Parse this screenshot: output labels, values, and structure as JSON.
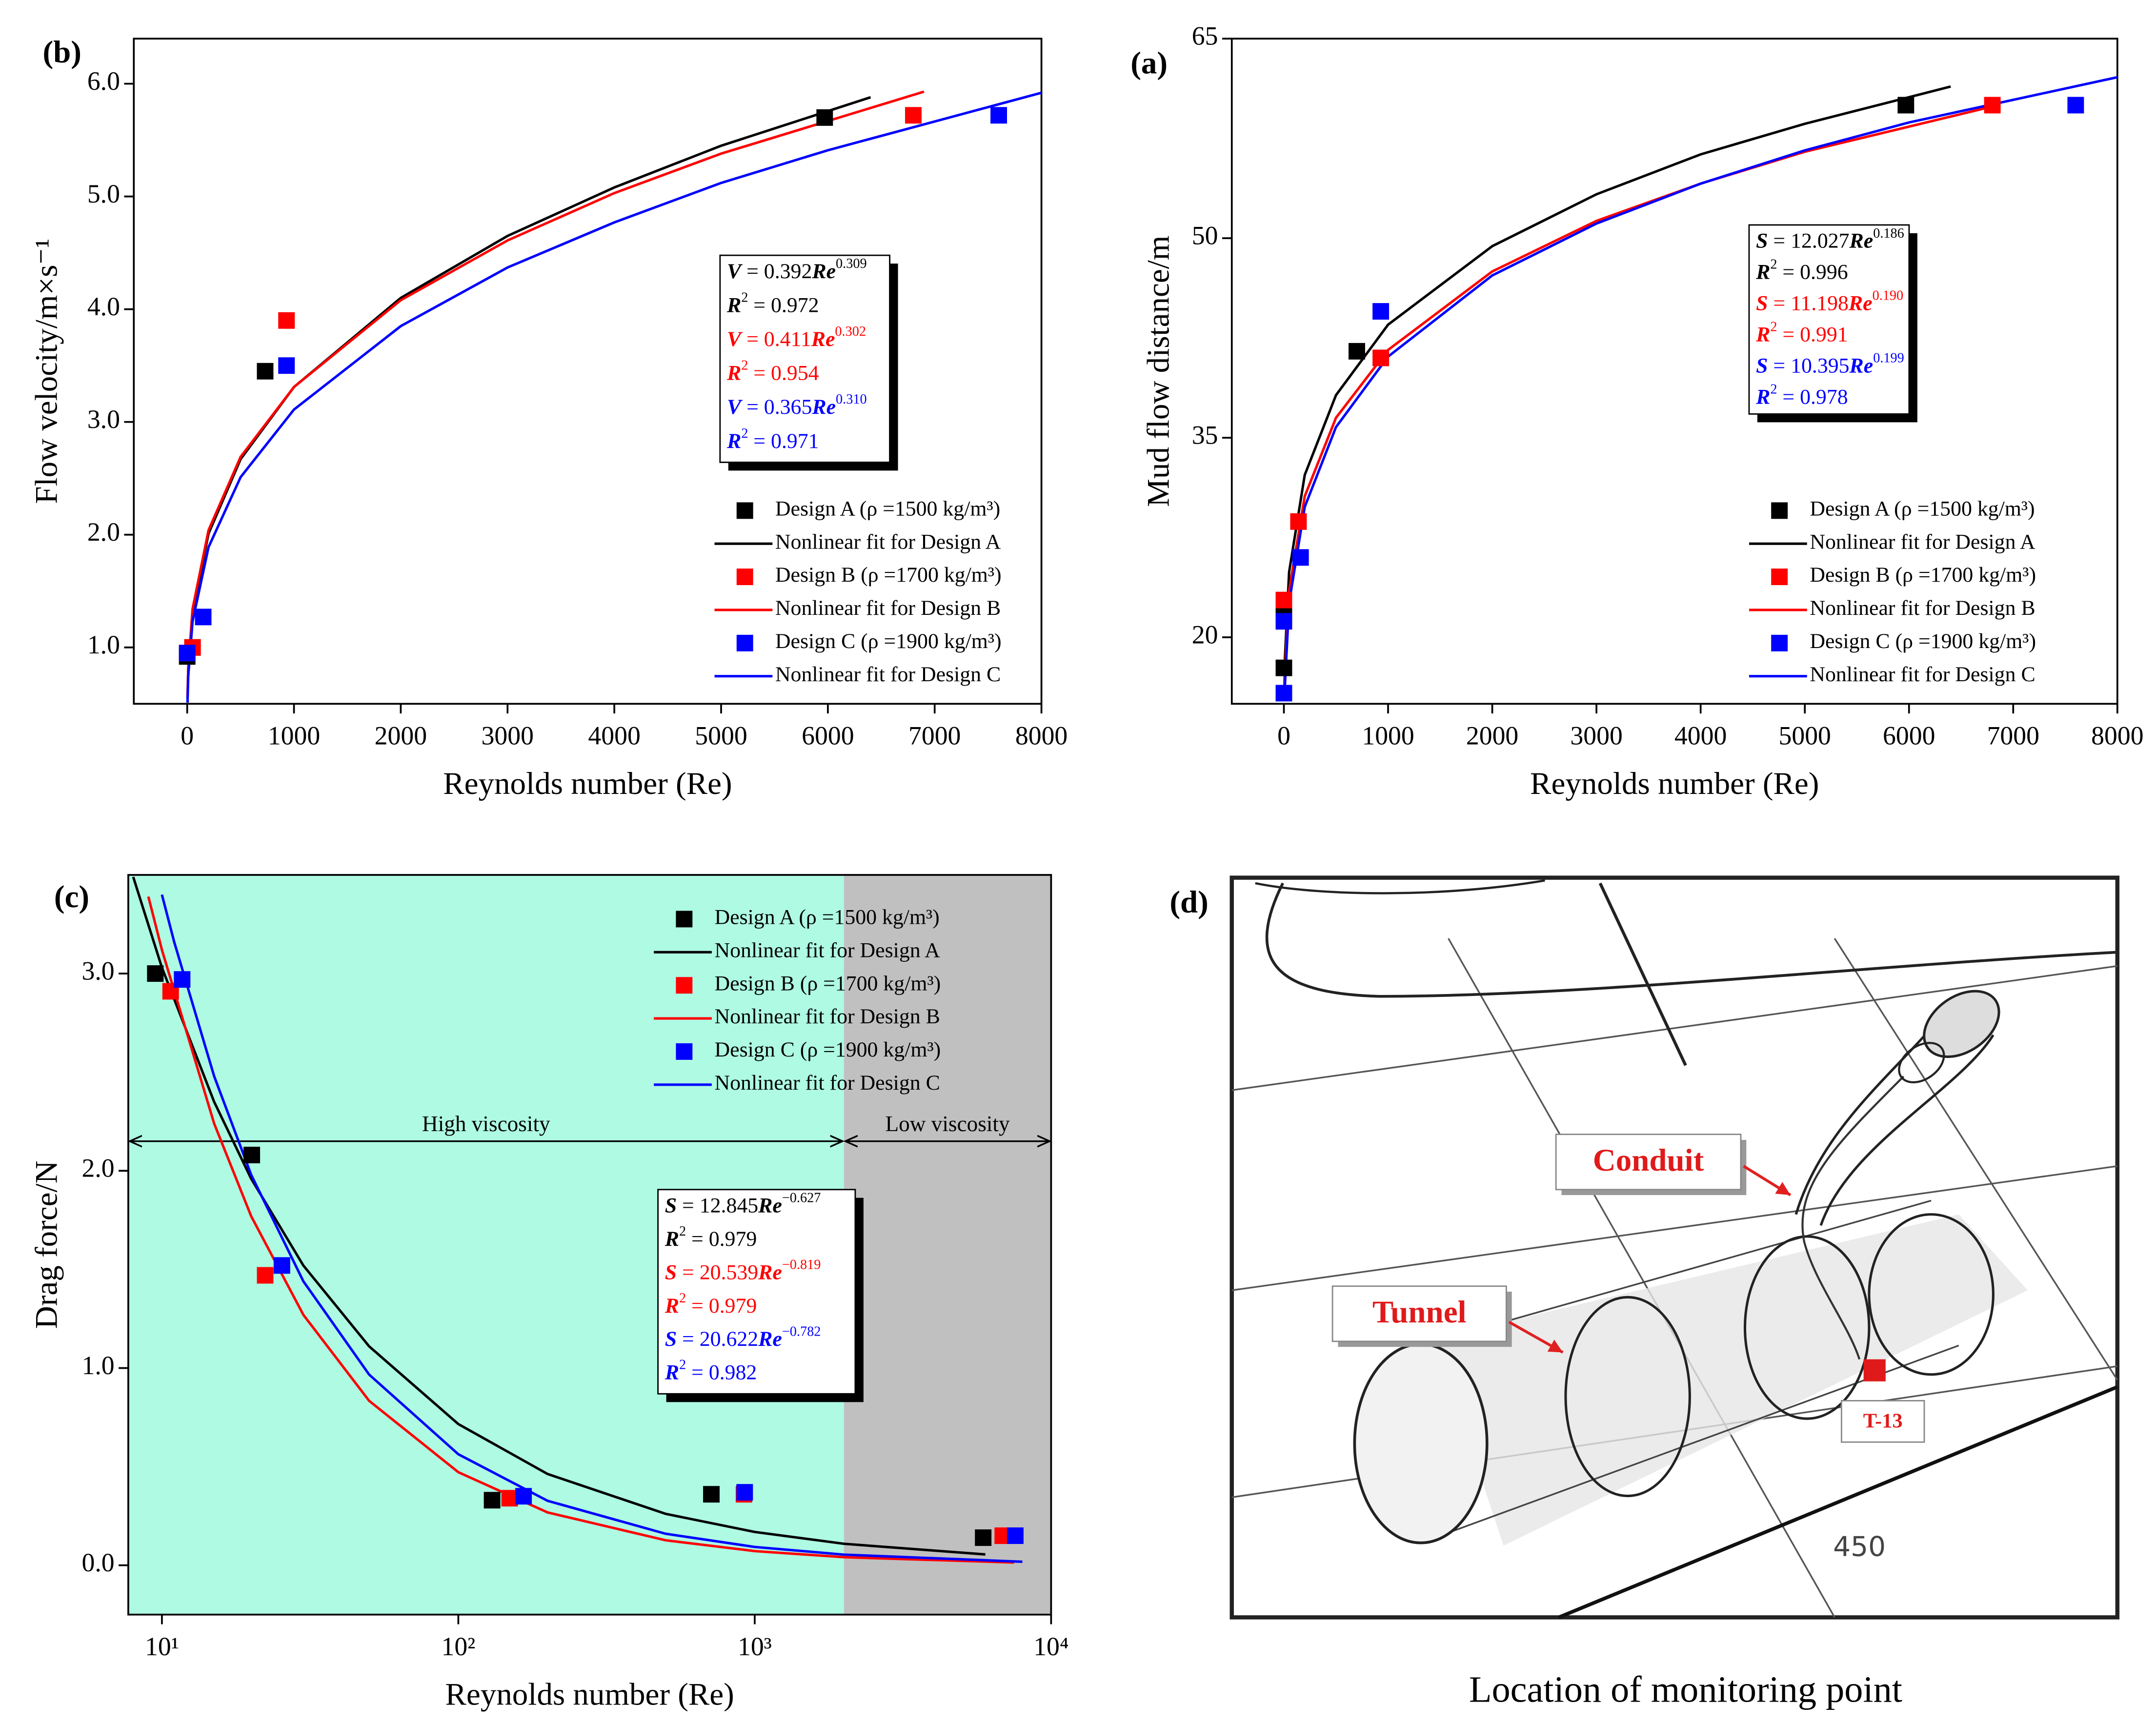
{
  "chart_data": [
    {
      "type": "scatter",
      "label": "(b)",
      "xlabel": "Reynolds number (Re)",
      "ylabel": "Flow velocity/m×s⁻¹",
      "xlim": [
        -500,
        8000
      ],
      "xticks": [
        0,
        1000,
        2000,
        3000,
        4000,
        5000,
        6000,
        7000,
        8000
      ],
      "ylim": [
        0.5,
        6.4
      ],
      "yticks": [
        {
          "value": 1,
          "label": "1.0"
        },
        {
          "value": 2,
          "label": "2.0"
        },
        {
          "value": 3,
          "label": "3.0"
        },
        {
          "value": 4,
          "label": "4.0"
        },
        {
          "value": 5,
          "label": "5.0"
        },
        {
          "value": 6,
          "label": "6.0"
        }
      ],
      "legend": "lower right",
      "series": [
        {
          "name": "Design A (ρ =1500 kg/m³)",
          "color": "#000000",
          "style": "marker",
          "x": [
            0,
            50,
            730,
            5970
          ],
          "values": [
            0.92,
            1.0,
            3.45,
            5.7
          ]
        },
        {
          "name": "Nonlinear fit for Design A",
          "color": "#000000",
          "style": "line",
          "x": [
            3,
            10,
            50,
            200,
            500,
            1000,
            2000,
            3000,
            4000,
            5000,
            6400
          ],
          "values": [
            0.55,
            0.8,
            1.31,
            2.01,
            2.67,
            3.31,
            4.1,
            4.65,
            5.08,
            5.45,
            5.88
          ]
        },
        {
          "name": "Design B (ρ =1700 kg/m³)",
          "color": "#ff0000",
          "style": "marker",
          "x": [
            0,
            50,
            930,
            6800
          ],
          "values": [
            0.95,
            1.0,
            3.9,
            5.72
          ]
        },
        {
          "name": "Nonlinear fit for Design B",
          "color": "#ff0000",
          "style": "line",
          "x": [
            3,
            10,
            50,
            200,
            500,
            1000,
            2000,
            3000,
            4000,
            5000,
            6900
          ],
          "values": [
            0.57,
            0.82,
            1.34,
            2.04,
            2.69,
            3.31,
            4.08,
            4.61,
            5.03,
            5.38,
            5.93
          ]
        },
        {
          "name": "Design C (ρ =1900 kg/m³)",
          "color": "#0000ff",
          "style": "marker",
          "x": [
            0,
            150,
            930,
            7600
          ],
          "values": [
            0.95,
            1.27,
            3.5,
            5.72
          ]
        },
        {
          "name": "Nonlinear fit for Design C",
          "color": "#0000ff",
          "style": "line",
          "x": [
            3,
            10,
            50,
            200,
            500,
            1000,
            2000,
            3000,
            4000,
            5000,
            6000,
            8000
          ],
          "values": [
            0.51,
            0.75,
            1.23,
            1.89,
            2.51,
            3.11,
            3.85,
            4.37,
            4.77,
            5.12,
            5.41,
            5.92
          ]
        }
      ],
      "annotation": {
        "lines": [
          {
            "color": "#000000",
            "parts": [
              "V",
              " = 0.392",
              "Re",
              "0.309"
            ],
            "styles": [
              "bi",
              "n",
              "bi",
              "sup"
            ]
          },
          {
            "color": "#000000",
            "parts": [
              "R",
              "2",
              " = 0.972"
            ],
            "styles": [
              "bi",
              "sup",
              "n"
            ]
          },
          {
            "color": "#ff0000",
            "parts": [
              "V",
              " = 0.411",
              "Re",
              "0.302"
            ],
            "styles": [
              "bi",
              "n",
              "bi",
              "sup"
            ]
          },
          {
            "color": "#ff0000",
            "parts": [
              "R",
              "2",
              " = 0.954"
            ],
            "styles": [
              "bi",
              "sup",
              "n"
            ]
          },
          {
            "color": "#0000ff",
            "parts": [
              "V",
              " = 0.365",
              "Re",
              "0.310"
            ],
            "styles": [
              "bi",
              "n",
              "bi",
              "sup"
            ]
          },
          {
            "color": "#0000ff",
            "parts": [
              "R",
              "2",
              " = 0.971"
            ],
            "styles": [
              "bi",
              "sup",
              "n"
            ]
          }
        ]
      }
    },
    {
      "type": "scatter",
      "label": "(a)",
      "xlabel": "Reynolds number (Re)",
      "ylabel": "Mud flow distance/m",
      "xlim": [
        -500,
        8000
      ],
      "xticks": [
        0,
        1000,
        2000,
        3000,
        4000,
        5000,
        6000,
        7000,
        8000
      ],
      "ylim": [
        15,
        65
      ],
      "yticks": [
        20,
        35,
        50,
        65
      ],
      "legend": "lower right",
      "series": [
        {
          "name": "Design A (ρ =1500 kg/m³)",
          "color": "#000000",
          "style": "marker",
          "x": [
            0,
            0,
            700,
            5970
          ],
          "values": [
            17.7,
            21.8,
            41.5,
            60
          ]
        },
        {
          "name": "Nonlinear fit for Design A",
          "color": "#000000",
          "style": "line",
          "x": [
            5,
            10,
            50,
            200,
            500,
            1000,
            2000,
            3000,
            4000,
            5000,
            6400
          ],
          "values": [
            16.2,
            18.46,
            24.9,
            32.2,
            38.2,
            43.5,
            49.4,
            53.3,
            56.3,
            58.6,
            61.4
          ]
        },
        {
          "name": "Design B (ρ =1700 kg/m³)",
          "color": "#ff0000",
          "style": "marker",
          "x": [
            0,
            140,
            930,
            6800
          ],
          "values": [
            22.8,
            28.7,
            41,
            60
          ]
        },
        {
          "name": "Nonlinear fit for Design B",
          "color": "#ff0000",
          "style": "line",
          "x": [
            5,
            10,
            50,
            200,
            500,
            1000,
            2000,
            3000,
            4000,
            5000,
            6800
          ],
          "values": [
            15.2,
            17.3,
            23.5,
            30.6,
            36.5,
            41.6,
            47.5,
            51.3,
            54.1,
            56.5,
            59.9
          ]
        },
        {
          "name": "Design C (ρ =1900 kg/m³)",
          "color": "#0000ff",
          "style": "marker",
          "x": [
            0,
            0,
            160,
            930,
            7600
          ],
          "values": [
            15.8,
            21.2,
            26,
            44.5,
            60
          ]
        },
        {
          "name": "Nonlinear fit for Design C",
          "color": "#0000ff",
          "style": "line",
          "x": [
            7,
            10,
            50,
            200,
            500,
            1000,
            2000,
            3000,
            4000,
            5000,
            6000,
            8000
          ],
          "values": [
            15.3,
            16.4,
            22.6,
            29.8,
            35.8,
            41.1,
            47.2,
            51.1,
            54.1,
            56.6,
            58.7,
            62.1
          ]
        }
      ],
      "annotation": {
        "lines": [
          {
            "color": "#000000",
            "parts": [
              "S",
              " = 12.027",
              "Re",
              "0.186"
            ],
            "styles": [
              "bi",
              "n",
              "bi",
              "sup"
            ]
          },
          {
            "color": "#000000",
            "parts": [
              "R",
              "2",
              " = 0.996"
            ],
            "styles": [
              "bi",
              "sup",
              "n"
            ]
          },
          {
            "color": "#ff0000",
            "parts": [
              "S",
              " = 11.198",
              "Re",
              "0.190"
            ],
            "styles": [
              "bi",
              "n",
              "bi",
              "sup"
            ]
          },
          {
            "color": "#ff0000",
            "parts": [
              "R",
              "2",
              " = 0.991"
            ],
            "styles": [
              "bi",
              "sup",
              "n"
            ]
          },
          {
            "color": "#0000ff",
            "parts": [
              "S",
              " = 10.395",
              "Re",
              "0.199"
            ],
            "styles": [
              "bi",
              "n",
              "bi",
              "sup"
            ]
          },
          {
            "color": "#0000ff",
            "parts": [
              "R",
              "2",
              " = 0.978"
            ],
            "styles": [
              "bi",
              "sup",
              "n"
            ]
          }
        ]
      }
    },
    {
      "type": "scatter",
      "label": "(c)",
      "xlabel": "Reynolds number (Re)",
      "ylabel": "Drag force/N",
      "xscale": "log",
      "xlim": [
        7.7,
        10000
      ],
      "xticks": [
        {
          "value": 10,
          "label": "10¹"
        },
        {
          "value": 100,
          "label": "10²"
        },
        {
          "value": 1000,
          "label": "10³"
        },
        {
          "value": 10000,
          "label": "10⁴"
        }
      ],
      "ylim": [
        -0.25,
        3.5
      ],
      "yticks": [
        {
          "value": 0,
          "label": "0.0"
        },
        {
          "value": 1,
          "label": "1.0"
        },
        {
          "value": 2,
          "label": "2.0"
        },
        {
          "value": 3,
          "label": "3.0"
        }
      ],
      "legend": "upper right",
      "regions": [
        {
          "name": "High viscosity",
          "to": 2000,
          "color": "#aefae3"
        },
        {
          "name": "Low viscosity",
          "from": 2000,
          "color": "#c0c0c0"
        }
      ],
      "series": [
        {
          "name": "Design A (ρ =1500 kg/m³)",
          "color": "#000000",
          "style": "marker",
          "x": [
            9.5,
            20.1,
            130,
            714,
            5900
          ],
          "values": [
            3.0,
            2.08,
            0.33,
            0.36,
            0.14
          ]
        },
        {
          "name": "Nonlinear fit for Design A",
          "color": "#000000",
          "style": "line",
          "x": [
            8,
            10,
            15,
            20,
            30,
            50,
            100,
            200,
            500,
            1000,
            2000,
            6000
          ],
          "values": [
            3.49,
            3.03,
            2.35,
            1.96,
            1.52,
            1.11,
            0.716,
            0.463,
            0.261,
            0.169,
            0.109,
            0.055
          ]
        },
        {
          "name": "Design B (ρ =1700 kg/m³)",
          "color": "#ff0000",
          "style": "marker",
          "x": [
            10.7,
            22.3,
            149,
            920,
            6870
          ],
          "values": [
            2.91,
            1.47,
            0.34,
            0.36,
            0.15
          ]
        },
        {
          "name": "Nonlinear fit for Design B",
          "color": "#ff0000",
          "style": "line",
          "x": [
            9,
            10,
            15,
            20,
            30,
            50,
            100,
            200,
            500,
            1000,
            2000,
            7500
          ],
          "values": [
            3.39,
            3.12,
            2.24,
            1.77,
            1.27,
            0.834,
            0.472,
            0.268,
            0.127,
            0.072,
            0.041,
            0.014
          ]
        },
        {
          "name": "Design C (ρ =1900 kg/m³)",
          "color": "#0000ff",
          "style": "marker",
          "x": [
            11.7,
            25.4,
            166,
            925,
            7570
          ],
          "values": [
            2.97,
            1.52,
            0.35,
            0.37,
            0.15
          ]
        },
        {
          "name": "Nonlinear fit for Design C",
          "color": "#0000ff",
          "style": "line",
          "x": [
            10,
            11,
            15,
            20,
            30,
            50,
            100,
            200,
            500,
            1000,
            2000,
            8000
          ],
          "values": [
            3.4,
            3.16,
            2.48,
            1.98,
            1.44,
            0.967,
            0.563,
            0.327,
            0.16,
            0.093,
            0.054,
            0.018
          ]
        }
      ],
      "annotation": {
        "lines": [
          {
            "color": "#000000",
            "parts": [
              "S",
              " = 12.845",
              "Re",
              "−0.627"
            ],
            "styles": [
              "bi",
              "n",
              "bi",
              "sup"
            ]
          },
          {
            "color": "#000000",
            "parts": [
              "R",
              "2",
              " = 0.979"
            ],
            "styles": [
              "bi",
              "sup",
              "n"
            ]
          },
          {
            "color": "#ff0000",
            "parts": [
              "S",
              " = 20.539",
              "Re",
              "−0.819"
            ],
            "styles": [
              "bi",
              "n",
              "bi",
              "sup"
            ]
          },
          {
            "color": "#ff0000",
            "parts": [
              "R",
              "2",
              " = 0.979"
            ],
            "styles": [
              "bi",
              "sup",
              "n"
            ]
          },
          {
            "color": "#0000ff",
            "parts": [
              "S",
              " = 20.622",
              "Re",
              "−0.782"
            ],
            "styles": [
              "bi",
              "n",
              "bi",
              "sup"
            ]
          },
          {
            "color": "#0000ff",
            "parts": [
              "R",
              "2",
              " = 0.982"
            ],
            "styles": [
              "bi",
              "sup",
              "n"
            ]
          }
        ]
      }
    }
  ],
  "diagram": {
    "label": "(d)",
    "conduit": "Conduit",
    "tunnel": "Tunnel",
    "point": "T-13",
    "dimension": "450",
    "caption": "Location of monitoring point"
  }
}
